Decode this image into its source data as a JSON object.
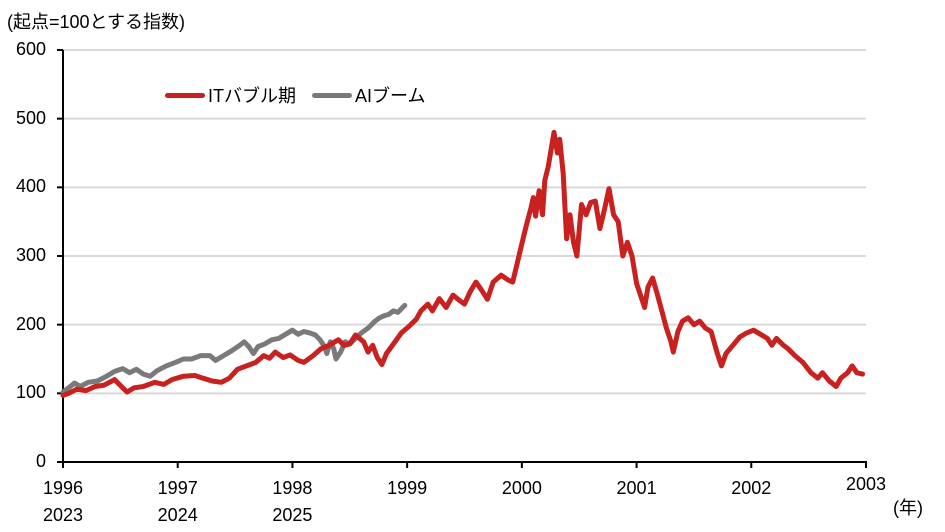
{
  "chart_data": {
    "type": "line",
    "title": "",
    "ylabel": "(起点=100とする指数)",
    "xlabel": "(年)",
    "ylim": [
      0,
      600
    ],
    "yticks": [
      0,
      100,
      200,
      300,
      400,
      500,
      600
    ],
    "xlim": [
      1996,
      2003
    ],
    "x_ticks_primary": [
      "1996",
      "1997",
      "1998",
      "1999",
      "2000",
      "2001",
      "2002",
      "2003"
    ],
    "x_ticks_secondary": [
      "2023",
      "2024",
      "2025"
    ],
    "grid": true,
    "legend_position": "top-left inside",
    "series": [
      {
        "name": "ITバブル期",
        "color": "#c8211f",
        "points": [
          [
            1996.0,
            97
          ],
          [
            1996.05,
            100
          ],
          [
            1996.12,
            106
          ],
          [
            1996.2,
            104
          ],
          [
            1996.28,
            110
          ],
          [
            1996.36,
            112
          ],
          [
            1996.45,
            120
          ],
          [
            1996.52,
            108
          ],
          [
            1996.56,
            102
          ],
          [
            1996.62,
            108
          ],
          [
            1996.7,
            110
          ],
          [
            1996.8,
            116
          ],
          [
            1996.88,
            113
          ],
          [
            1996.95,
            120
          ],
          [
            1997.05,
            125
          ],
          [
            1997.15,
            126
          ],
          [
            1997.22,
            122
          ],
          [
            1997.3,
            118
          ],
          [
            1997.38,
            116
          ],
          [
            1997.45,
            122
          ],
          [
            1997.52,
            135
          ],
          [
            1997.6,
            140
          ],
          [
            1997.68,
            145
          ],
          [
            1997.75,
            155
          ],
          [
            1997.8,
            151
          ],
          [
            1997.85,
            160
          ],
          [
            1997.92,
            152
          ],
          [
            1997.98,
            156
          ],
          [
            1998.05,
            148
          ],
          [
            1998.1,
            145
          ],
          [
            1998.18,
            155
          ],
          [
            1998.25,
            165
          ],
          [
            1998.32,
            170
          ],
          [
            1998.4,
            178
          ],
          [
            1998.45,
            170
          ],
          [
            1998.5,
            172
          ],
          [
            1998.55,
            185
          ],
          [
            1998.62,
            175
          ],
          [
            1998.66,
            160
          ],
          [
            1998.7,
            170
          ],
          [
            1998.74,
            152
          ],
          [
            1998.78,
            142
          ],
          [
            1998.82,
            158
          ],
          [
            1998.88,
            172
          ],
          [
            1998.95,
            188
          ],
          [
            1999.02,
            198
          ],
          [
            1999.08,
            208
          ],
          [
            1999.12,
            220
          ],
          [
            1999.18,
            230
          ],
          [
            1999.22,
            220
          ],
          [
            1999.28,
            238
          ],
          [
            1999.34,
            225
          ],
          [
            1999.4,
            243
          ],
          [
            1999.45,
            236
          ],
          [
            1999.5,
            230
          ],
          [
            1999.55,
            248
          ],
          [
            1999.6,
            262
          ],
          [
            1999.65,
            250
          ],
          [
            1999.7,
            237
          ],
          [
            1999.75,
            262
          ],
          [
            1999.82,
            272
          ],
          [
            1999.88,
            265
          ],
          [
            1999.92,
            262
          ],
          [
            1999.96,
            290
          ],
          [
            2000.0,
            318
          ],
          [
            2000.04,
            345
          ],
          [
            2000.08,
            370
          ],
          [
            2000.1,
            385
          ],
          [
            2000.12,
            358
          ],
          [
            2000.15,
            395
          ],
          [
            2000.18,
            360
          ],
          [
            2000.2,
            410
          ],
          [
            2000.23,
            430
          ],
          [
            2000.26,
            460
          ],
          [
            2000.28,
            480
          ],
          [
            2000.31,
            450
          ],
          [
            2000.33,
            470
          ],
          [
            2000.36,
            420
          ],
          [
            2000.39,
            325
          ],
          [
            2000.42,
            360
          ],
          [
            2000.45,
            320
          ],
          [
            2000.48,
            300
          ],
          [
            2000.52,
            375
          ],
          [
            2000.56,
            360
          ],
          [
            2000.6,
            378
          ],
          [
            2000.64,
            380
          ],
          [
            2000.68,
            340
          ],
          [
            2000.72,
            368
          ],
          [
            2000.76,
            398
          ],
          [
            2000.8,
            360
          ],
          [
            2000.84,
            350
          ],
          [
            2000.88,
            300
          ],
          [
            2000.92,
            320
          ],
          [
            2000.96,
            300
          ],
          [
            2001.0,
            260
          ],
          [
            2001.04,
            240
          ],
          [
            2001.07,
            225
          ],
          [
            2001.1,
            255
          ],
          [
            2001.14,
            268
          ],
          [
            2001.18,
            245
          ],
          [
            2001.22,
            220
          ],
          [
            2001.26,
            195
          ],
          [
            2001.3,
            175
          ],
          [
            2001.32,
            160
          ],
          [
            2001.36,
            190
          ],
          [
            2001.4,
            205
          ],
          [
            2001.45,
            210
          ],
          [
            2001.5,
            200
          ],
          [
            2001.55,
            205
          ],
          [
            2001.6,
            195
          ],
          [
            2001.65,
            190
          ],
          [
            2001.7,
            160
          ],
          [
            2001.74,
            140
          ],
          [
            2001.78,
            158
          ],
          [
            2001.84,
            170
          ],
          [
            2001.9,
            182
          ],
          [
            2001.96,
            188
          ],
          [
            2002.02,
            192
          ],
          [
            2002.08,
            186
          ],
          [
            2002.14,
            180
          ],
          [
            2002.18,
            170
          ],
          [
            2002.22,
            180
          ],
          [
            2002.28,
            170
          ],
          [
            2002.32,
            165
          ],
          [
            2002.38,
            155
          ],
          [
            2002.45,
            145
          ],
          [
            2002.52,
            130
          ],
          [
            2002.58,
            122
          ],
          [
            2002.62,
            130
          ],
          [
            2002.68,
            118
          ],
          [
            2002.74,
            110
          ],
          [
            2002.78,
            122
          ],
          [
            2002.84,
            130
          ],
          [
            2002.88,
            140
          ],
          [
            2002.92,
            130
          ],
          [
            2002.97,
            128
          ]
        ]
      },
      {
        "name": "AIブーム",
        "color": "#7a7a7a",
        "points": [
          [
            1996.0,
            102
          ],
          [
            1996.05,
            108
          ],
          [
            1996.1,
            115
          ],
          [
            1996.15,
            110
          ],
          [
            1996.22,
            116
          ],
          [
            1996.3,
            118
          ],
          [
            1996.38,
            125
          ],
          [
            1996.45,
            132
          ],
          [
            1996.52,
            136
          ],
          [
            1996.58,
            130
          ],
          [
            1996.64,
            135
          ],
          [
            1996.7,
            128
          ],
          [
            1996.76,
            125
          ],
          [
            1996.82,
            133
          ],
          [
            1996.9,
            140
          ],
          [
            1996.98,
            145
          ],
          [
            1997.05,
            150
          ],
          [
            1997.12,
            150
          ],
          [
            1997.2,
            155
          ],
          [
            1997.28,
            155
          ],
          [
            1997.33,
            148
          ],
          [
            1997.4,
            155
          ],
          [
            1997.47,
            162
          ],
          [
            1997.54,
            170
          ],
          [
            1997.58,
            175
          ],
          [
            1997.62,
            168
          ],
          [
            1997.66,
            158
          ],
          [
            1997.7,
            168
          ],
          [
            1997.76,
            172
          ],
          [
            1997.82,
            178
          ],
          [
            1997.88,
            180
          ],
          [
            1997.94,
            186
          ],
          [
            1998.0,
            192
          ],
          [
            1998.05,
            186
          ],
          [
            1998.1,
            190
          ],
          [
            1998.15,
            188
          ],
          [
            1998.2,
            185
          ],
          [
            1998.24,
            178
          ],
          [
            1998.28,
            168
          ],
          [
            1998.3,
            158
          ],
          [
            1998.33,
            175
          ],
          [
            1998.36,
            165
          ],
          [
            1998.38,
            150
          ],
          [
            1998.42,
            160
          ],
          [
            1998.46,
            175
          ],
          [
            1998.5,
            172
          ],
          [
            1998.55,
            180
          ],
          [
            1998.6,
            188
          ],
          [
            1998.66,
            195
          ],
          [
            1998.72,
            205
          ],
          [
            1998.76,
            210
          ],
          [
            1998.8,
            213
          ],
          [
            1998.84,
            215
          ],
          [
            1998.88,
            220
          ],
          [
            1998.92,
            218
          ],
          [
            1998.96,
            225
          ],
          [
            1998.98,
            228
          ]
        ]
      }
    ]
  }
}
